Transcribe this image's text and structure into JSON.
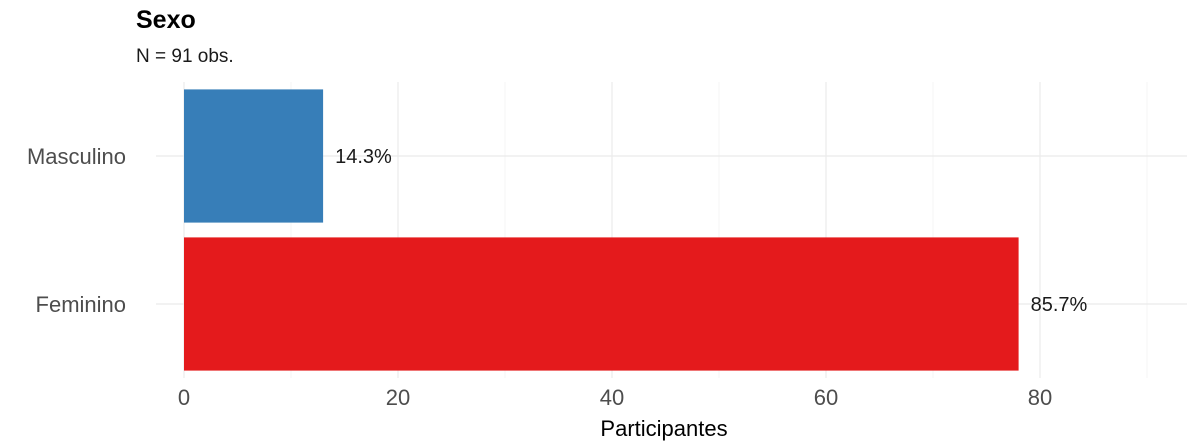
{
  "chart_data": {
    "type": "bar",
    "orientation": "horizontal",
    "title": "Sexo",
    "subtitle": "N = 91 obs.",
    "xlabel": "Participantes",
    "ylabel": "",
    "categories": [
      "Masculino",
      "Feminino"
    ],
    "values": [
      13,
      78
    ],
    "labels": [
      "14.3%",
      "85.7%"
    ],
    "colors": [
      "#377EB8",
      "#E41A1C"
    ],
    "xlim": [
      0,
      91
    ],
    "x_ticks": [
      0,
      20,
      40,
      60,
      80
    ],
    "x_tick_labels": [
      "0",
      "20",
      "40",
      "60",
      "80"
    ],
    "grid": true,
    "legend": "none"
  }
}
